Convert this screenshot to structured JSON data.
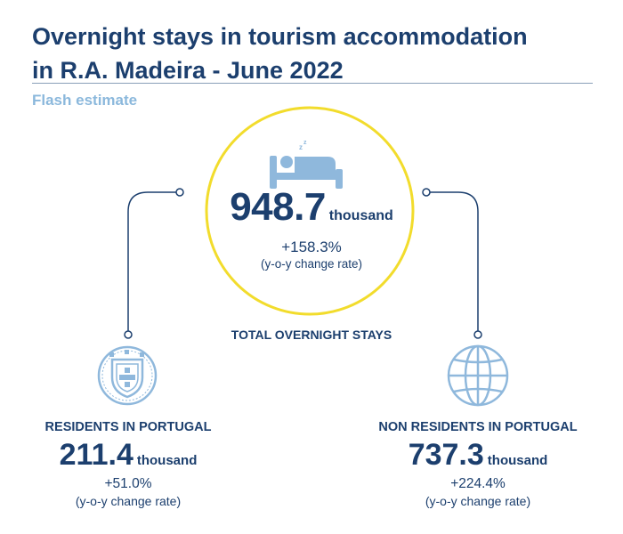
{
  "header": {
    "title_line1": "Overnight stays in tourism accommodation",
    "title_line2": "in R.A. Madeira - June 2022",
    "subtitle": "Flash estimate"
  },
  "total": {
    "value": "948.7",
    "unit": "thousand",
    "rate": "+158.3%",
    "note": "(y-o-y change rate)",
    "label": "TOTAL OVERNIGHT STAYS",
    "icon": "sleeping-bed-icon"
  },
  "residents": {
    "label": "RESIDENTS IN PORTUGAL",
    "value": "211.4",
    "unit": "thousand",
    "rate": "+51.0%",
    "note": "(y-o-y change rate)",
    "icon": "portugal-coat-of-arms-icon"
  },
  "non_residents": {
    "label": "NON RESIDENTS IN PORTUGAL",
    "value": "737.3",
    "unit": "thousand",
    "rate": "+224.4%",
    "note": "(y-o-y change rate)",
    "icon": "globe-icon"
  },
  "colors": {
    "title": "#1c3f6e",
    "subtitle": "#8bb8dc",
    "circle": "#f2dc2c",
    "icon": "#8fb8dc",
    "connector": "#1c3f6e"
  }
}
